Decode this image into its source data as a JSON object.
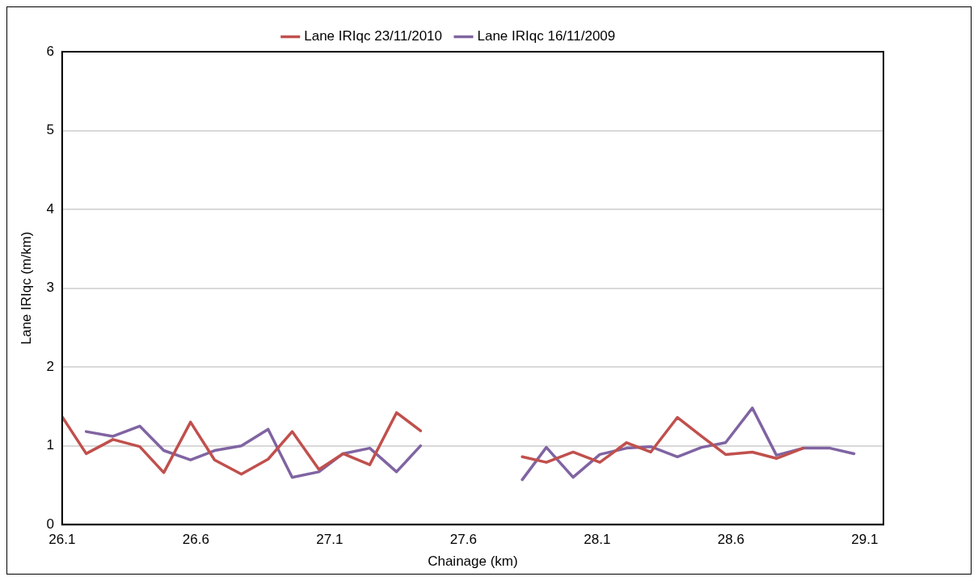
{
  "chart_data": {
    "type": "line",
    "xlabel": "Chainage (km)",
    "ylabel": "Lane IRIqc (m/km)",
    "x": [
      26.1,
      26.19,
      26.29,
      26.39,
      26.48,
      26.58,
      26.67,
      26.77,
      26.87,
      26.96,
      27.06,
      27.15,
      27.25,
      27.35,
      27.44,
      27.6,
      27.82,
      27.91,
      28.01,
      28.11,
      28.21,
      28.3,
      28.4,
      28.49,
      28.58,
      28.68,
      28.77,
      28.87,
      28.97,
      29.06
    ],
    "series": [
      {
        "name": "Lane IRIqc 23/11/2010",
        "color": "#c0504d",
        "values": [
          1.37,
          0.9,
          1.08,
          0.99,
          0.66,
          1.3,
          0.82,
          0.64,
          0.83,
          1.18,
          0.7,
          0.9,
          0.76,
          1.42,
          1.19,
          null,
          0.86,
          0.79,
          0.92,
          0.79,
          1.04,
          0.92,
          1.36,
          1.12,
          0.89,
          0.92,
          0.84,
          0.97,
          null,
          null
        ]
      },
      {
        "name": "Lane IRIqc 16/11/2009",
        "color": "#8064a2",
        "values": [
          null,
          1.18,
          1.12,
          1.25,
          0.94,
          0.82,
          0.94,
          1.0,
          1.21,
          0.6,
          0.67,
          0.9,
          0.97,
          0.67,
          1.0,
          null,
          0.57,
          0.98,
          0.6,
          0.89,
          0.97,
          0.99,
          0.86,
          0.98,
          1.04,
          1.48,
          0.88,
          0.97,
          0.97,
          0.9
        ]
      }
    ],
    "xlim": [
      26.1,
      29.17
    ],
    "xticks": [
      26.1,
      26.6,
      27.1,
      27.6,
      28.1,
      28.6,
      29.1
    ],
    "ylim": [
      0,
      6
    ],
    "yticks": [
      0,
      1,
      2,
      3,
      4,
      5,
      6
    ],
    "grid": "y",
    "legend": "top",
    "marker": "none",
    "line_style": "solid"
  }
}
